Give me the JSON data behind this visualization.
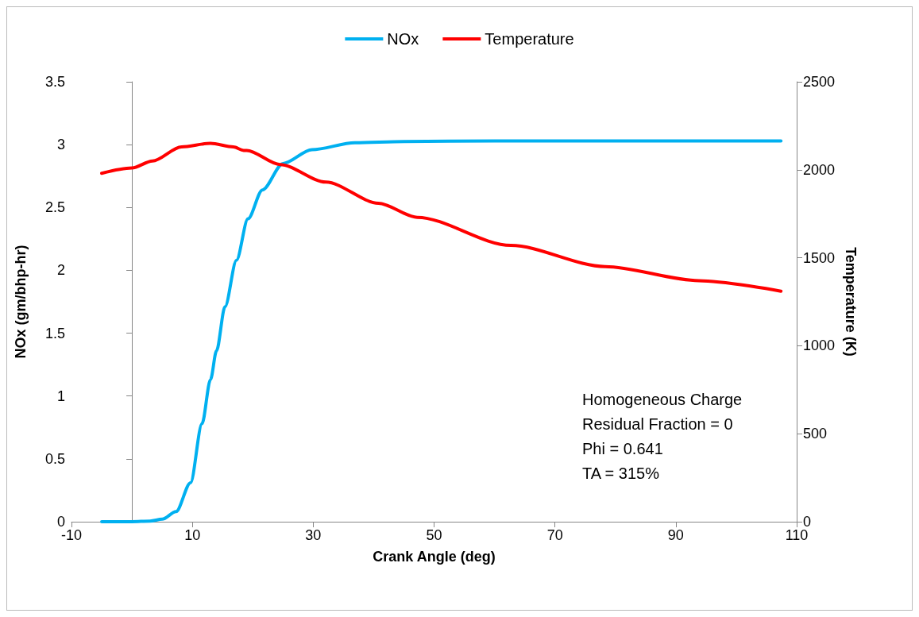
{
  "chart_data": {
    "type": "line",
    "xlabel": "Crank Angle (deg)",
    "ylabel": "NOx (gm/bhp-hr)",
    "y2label": "Temperature (K)",
    "xlim": [
      -10,
      110
    ],
    "xticks": [
      -10,
      10,
      30,
      50,
      70,
      90,
      110
    ],
    "ylim": [
      0,
      3.5
    ],
    "yticks": [
      0,
      0.5,
      1,
      1.5,
      2,
      2.5,
      3,
      3.5
    ],
    "y2lim": [
      0,
      2500
    ],
    "y2ticks": [
      0,
      500,
      1000,
      1500,
      2000,
      2500
    ],
    "grid": false,
    "legend": "top",
    "marker": "none",
    "line_style": "solid",
    "series": [
      {
        "name": "NOx",
        "color": "#00b0f0",
        "x": [
          -5,
          0,
          3,
          5,
          7.3,
          9.7,
          11.6,
          13,
          14,
          15.4,
          17.3,
          19.2,
          21.6,
          25,
          29.8,
          36.9,
          45,
          60,
          80,
          107.4
        ],
        "values": [
          0,
          0,
          0.005,
          0.02,
          0.08,
          0.31,
          0.78,
          1.13,
          1.36,
          1.71,
          2.08,
          2.41,
          2.64,
          2.85,
          2.96,
          3.015,
          3.025,
          3.03,
          3.03,
          3.03
        ]
      },
      {
        "name": "Temperature",
        "color": "#ff0000",
        "axis": "y2",
        "x": [
          -5,
          0,
          3.4,
          8.2,
          13,
          16.8,
          18.5,
          19,
          24.5,
          32.1,
          40.8,
          47.2,
          62.7,
          78.3,
          93.8,
          107.4
        ],
        "values": [
          1980,
          2010,
          2050,
          2130,
          2150,
          2130,
          2110,
          2110,
          2030,
          1930,
          1810,
          1730,
          1570,
          1450,
          1370,
          1310
        ]
      }
    ],
    "annotations": [
      "Homogeneous Charge",
      "Residual Fraction = 0",
      "Phi = 0.641",
      "TA = 315%"
    ]
  }
}
